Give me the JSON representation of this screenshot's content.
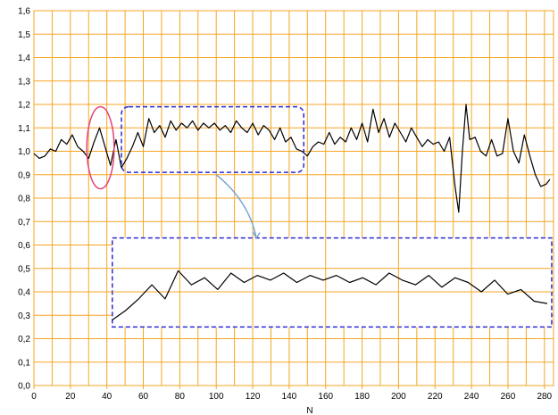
{
  "colors": {
    "grid": "#f5a623",
    "series": "#000000",
    "ellipse": "#e0457b",
    "highlight_box": "#2b2bd6",
    "arrow": "#7aa6d4",
    "background": "#ffffff"
  },
  "chart_data": {
    "type": "line",
    "title": "",
    "xlabel": "N",
    "ylabel": "",
    "xlim": [
      0,
      285
    ],
    "ylim": [
      0.0,
      1.6
    ],
    "x_ticks": [
      0,
      20,
      40,
      60,
      80,
      100,
      120,
      140,
      160,
      180,
      200,
      220,
      240,
      260,
      280
    ],
    "x_tick_labels": [
      "0",
      "20",
      "40",
      "60",
      "80",
      "100",
      "120",
      "140",
      "160",
      "180",
      "200",
      "220",
      "240",
      "260",
      "280"
    ],
    "y_ticks": [
      0.0,
      0.1,
      0.2,
      0.3,
      0.4,
      0.5,
      0.6,
      0.7,
      0.8,
      0.9,
      1.0,
      1.1,
      1.2,
      1.3,
      1.4,
      1.5,
      1.6
    ],
    "y_tick_labels": [
      "0,0",
      "0,1",
      "0,2",
      "0,3",
      "0,4",
      "0,5",
      "0,6",
      "0,7",
      "0,8",
      "0,9",
      "1,0",
      "1,1",
      "1,2",
      "1,3",
      "1,4",
      "1,5",
      "1,6"
    ],
    "grid": true,
    "series": [
      {
        "x": [
          0,
          3,
          6,
          9,
          12,
          15,
          18,
          21,
          24,
          27,
          30,
          33,
          36,
          39,
          42,
          45,
          48,
          51,
          54,
          57,
          60,
          63,
          66,
          69,
          72,
          75,
          78,
          81,
          84,
          87,
          90,
          93,
          96,
          99,
          102,
          105,
          108,
          111,
          114,
          117,
          120,
          123,
          126,
          129,
          132,
          135,
          138,
          141,
          144,
          147,
          150,
          153,
          156,
          159,
          162,
          165,
          168,
          171,
          174,
          177,
          180,
          183,
          186,
          189,
          192,
          195,
          198,
          201,
          204,
          207,
          210,
          213,
          216,
          219,
          222,
          225,
          228,
          231,
          233,
          235,
          237,
          239,
          242,
          245,
          248,
          251,
          254,
          257,
          260,
          263,
          266,
          269,
          272,
          275,
          278,
          281,
          283
        ],
        "y": [
          0.99,
          0.97,
          0.98,
          1.01,
          1.0,
          1.05,
          1.03,
          1.07,
          1.02,
          1.0,
          0.97,
          1.04,
          1.1,
          1.02,
          0.94,
          1.05,
          0.93,
          0.97,
          1.02,
          1.08,
          1.02,
          1.14,
          1.08,
          1.11,
          1.06,
          1.13,
          1.09,
          1.12,
          1.1,
          1.13,
          1.09,
          1.12,
          1.1,
          1.12,
          1.09,
          1.11,
          1.08,
          1.13,
          1.1,
          1.08,
          1.12,
          1.07,
          1.11,
          1.09,
          1.05,
          1.1,
          1.04,
          1.06,
          1.01,
          1.0,
          0.98,
          1.02,
          1.04,
          1.03,
          1.08,
          1.03,
          1.06,
          1.04,
          1.1,
          1.05,
          1.12,
          1.04,
          1.18,
          1.08,
          1.14,
          1.06,
          1.12,
          1.08,
          1.04,
          1.1,
          1.06,
          1.02,
          1.05,
          1.03,
          1.04,
          1.0,
          1.06,
          0.85,
          0.74,
          1.0,
          1.2,
          1.05,
          1.06,
          1.0,
          0.98,
          1.05,
          0.98,
          0.99,
          1.14,
          1.0,
          0.95,
          1.07,
          0.98,
          0.9,
          0.85,
          0.86,
          0.88
        ]
      }
    ],
    "annotations": [
      {
        "type": "ellipse",
        "x_range": [
          29,
          44
        ],
        "y_range": [
          0.84,
          1.19
        ]
      },
      {
        "type": "dashed-box",
        "x_range": [
          48,
          148
        ],
        "y_range": [
          0.91,
          1.19
        ]
      },
      {
        "type": "dashed-box-inset",
        "x_range": [
          43,
          284
        ],
        "y_range": [
          0.25,
          0.63
        ]
      },
      {
        "type": "arrow",
        "from": [
          100,
          0.9
        ],
        "to": [
          122,
          0.63
        ]
      }
    ]
  }
}
